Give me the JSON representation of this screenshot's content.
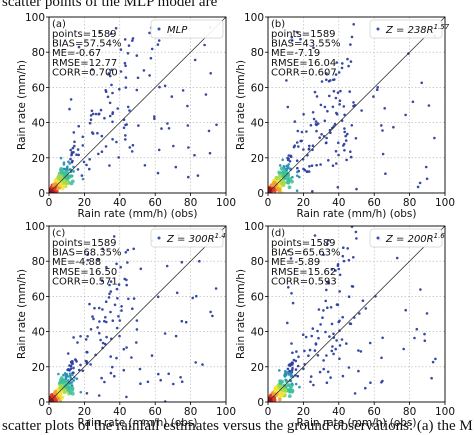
{
  "caption": {
    "top": "scatter points of the MLP model are",
    "bottom": "scatter plots of the rainfall estimates versus the ground observations: (a) the M"
  },
  "colors": {
    "dot": "#3b4fa8",
    "density": [
      "#2c3fa0",
      "#2a8fb4",
      "#3cbf9a",
      "#a5d94a",
      "#f3e43a",
      "#f0a032",
      "#e03a25",
      "#b40f1a"
    ],
    "one_to_one": "#333333"
  },
  "chart_data": [
    {
      "type": "scatter",
      "panel": "(a)",
      "legend": "MLP",
      "legend_placement": "top-right",
      "stats": [
        "points=1589",
        "BIAS=57.54%",
        "ME=-0.67",
        "RMSE=12.77",
        "CORR=0.700"
      ],
      "xlabel": "Rain rate (mm/h) (obs)",
      "ylabel": "Rain rate (mm/h)",
      "xlim": [
        0,
        100
      ],
      "ylim": [
        0,
        100
      ],
      "ticks": [
        0,
        20,
        40,
        60,
        80,
        100
      ],
      "grid": true,
      "one_to_one_line": true,
      "seed": 11
    },
    {
      "type": "scatter",
      "panel": "(b)",
      "legend": "Z = 238R^1.57",
      "legend_placement": "top-right",
      "stats": [
        "points=1589",
        "BIAS=43.55%",
        "ME=-7.19",
        "RMSE=16.04",
        "CORR=0.607"
      ],
      "xlabel": "Rain rate (mm/h) (obs)",
      "ylabel": "Rain rate (mm/h)",
      "xlim": [
        0,
        100
      ],
      "ylim": [
        0,
        100
      ],
      "ticks": [
        0,
        20,
        40,
        60,
        80,
        100
      ],
      "grid": true,
      "one_to_one_line": true,
      "seed": 23
    },
    {
      "type": "scatter",
      "panel": "(c)",
      "legend": "Z = 300R^1.4",
      "legend_placement": "top-right",
      "stats": [
        "points=1589",
        "BIAS=68.35%",
        "ME=-4.88",
        "RMSE=16.50",
        "CORR=0.571"
      ],
      "xlabel": "Rain rate (mm/h) (obs)",
      "ylabel": "Rain rate (mm/h)",
      "xlim": [
        0,
        100
      ],
      "ylim": [
        0,
        100
      ],
      "ticks": [
        0,
        20,
        40,
        60,
        80,
        100
      ],
      "grid": true,
      "one_to_one_line": true,
      "seed": 37
    },
    {
      "type": "scatter",
      "panel": "(d)",
      "legend": "Z = 200R^1.6",
      "legend_placement": "top-right",
      "stats": [
        "points=1589",
        "BIAS=65.63%",
        "ME=-5.89",
        "RMSE=15.62",
        "CORR=0.593"
      ],
      "xlabel": "Rain rate (mm/h) (obs)",
      "ylabel": "Rain rate (mm/h)",
      "xlim": [
        0,
        100
      ],
      "ylim": [
        0,
        100
      ],
      "ticks": [
        0,
        20,
        40,
        60,
        80,
        100
      ],
      "grid": true,
      "one_to_one_line": true,
      "seed": 51
    }
  ]
}
